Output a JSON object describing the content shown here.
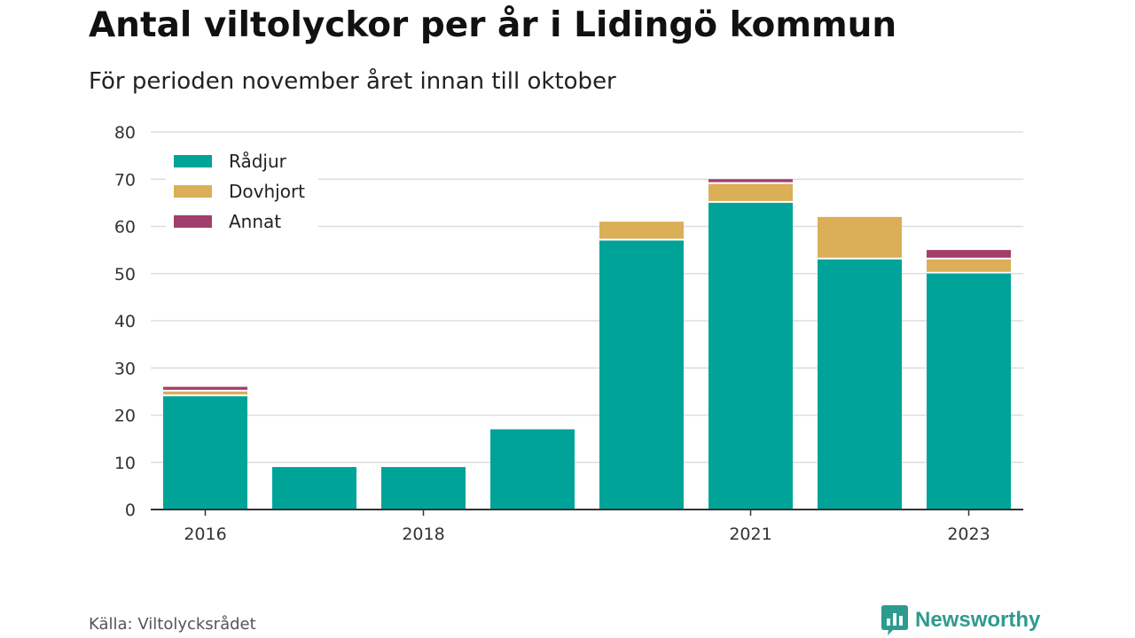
{
  "header": {
    "title": "Antal viltolyckor per år i Lidingö kommun",
    "subtitle": "För perioden november året innan till oktober"
  },
  "footer": {
    "source": "Källa: Viltolycksrådet",
    "brand": "Newsworthy",
    "brand_icon": "newsworthy-logo-icon",
    "brand_color": "#2e9b8f"
  },
  "chart_data": {
    "type": "bar",
    "stacked": true,
    "categories": [
      "2016",
      "2017",
      "2018",
      "2019",
      "2020",
      "2021",
      "2022",
      "2023"
    ],
    "x_tick_labels": [
      "2016",
      "",
      "2018",
      "",
      "",
      "2021",
      "",
      "2023"
    ],
    "series": [
      {
        "name": "Rådjur",
        "color": "#00a398",
        "values": [
          24,
          9,
          9,
          17,
          57,
          65,
          53,
          50
        ]
      },
      {
        "name": "Dovhjort",
        "color": "#dbae58",
        "values": [
          1,
          0,
          0,
          0,
          4,
          4,
          9,
          3
        ]
      },
      {
        "name": "Annat",
        "color": "#a23e6b",
        "values": [
          1,
          0,
          0,
          0,
          0,
          1,
          0,
          2
        ]
      }
    ],
    "ylim": [
      0,
      80
    ],
    "yticks": [
      0,
      10,
      20,
      30,
      40,
      50,
      60,
      70,
      80
    ],
    "title": "Antal viltolyckor per år i Lidingö kommun",
    "subtitle": "För perioden november året innan till oktober",
    "xlabel": "",
    "ylabel": "",
    "grid": true,
    "legend_position": "top-left"
  }
}
